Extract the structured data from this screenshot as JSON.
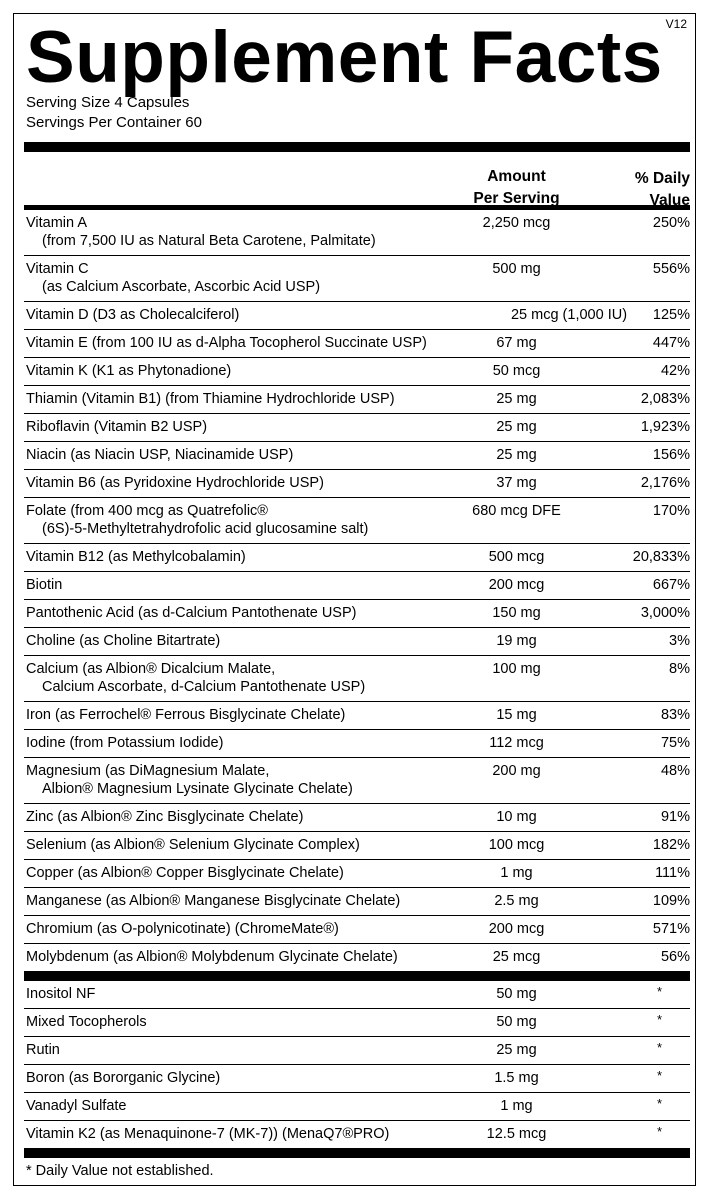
{
  "version": "V12",
  "title": "Supplement Facts",
  "serving_size": "Serving Size 4 Capsules",
  "servings_per_container": "Servings Per Container 60",
  "header": {
    "amount": [
      "Amount",
      "Per Serving"
    ],
    "dv": [
      "% Daily",
      "Value"
    ]
  },
  "nutrients": [
    {
      "name": "Vitamin A",
      "sub": "(from 7,500 IU as Natural Beta Carotene, Palmitate)",
      "amount": "2,250 mcg",
      "dv": "250%"
    },
    {
      "name": "Vitamin C",
      "sub": "(as Calcium Ascorbate, Ascorbic Acid USP)",
      "amount": "500 mg",
      "dv": "556%"
    },
    {
      "name": "Vitamin D (D3 as Cholecalciferol)",
      "amount": "25 mcg (1,000 IU)",
      "dv": "125%",
      "wide": true
    },
    {
      "name": "Vitamin E (from 100 IU as d-Alpha Tocopherol Succinate USP)",
      "amount": "67 mg",
      "dv": "447%"
    },
    {
      "name": "Vitamin K (K1 as Phytonadione)",
      "amount": "50 mcg",
      "dv": "42%"
    },
    {
      "name": "Thiamin (Vitamin B1) (from Thiamine Hydrochloride USP)",
      "amount": "25 mg",
      "dv": "2,083%"
    },
    {
      "name": "Riboflavin (Vitamin B2 USP)",
      "amount": "25 mg",
      "dv": "1,923%"
    },
    {
      "name": "Niacin (as Niacin USP, Niacinamide USP)",
      "amount": "25 mg",
      "dv": "156%"
    },
    {
      "name": "Vitamin B6 (as Pyridoxine Hydrochloride USP)",
      "amount": "37 mg",
      "dv": "2,176%"
    },
    {
      "name": "Folate (from 400 mcg as Quatrefolic®",
      "sub": "(6S)-5-Methyltetrahydrofolic acid glucosamine salt)",
      "amount": "680 mcg DFE",
      "dv": "170%"
    },
    {
      "name": "Vitamin B12 (as Methylcobalamin)",
      "amount": "500 mcg",
      "dv": "20,833%"
    },
    {
      "name": "Biotin",
      "amount": "200 mcg",
      "dv": "667%"
    },
    {
      "name": "Pantothenic Acid (as d-Calcium Pantothenate USP)",
      "amount": "150 mg",
      "dv": "3,000%"
    },
    {
      "name": "Choline (as Choline Bitartrate)",
      "amount": "19 mg",
      "dv": "3%"
    },
    {
      "name": "Calcium (as Albion® Dicalcium Malate,",
      "sub": "Calcium Ascorbate, d-Calcium Pantothenate USP)",
      "amount": "100 mg",
      "dv": "8%"
    },
    {
      "name": "Iron (as Ferrochel® Ferrous Bisglycinate Chelate)",
      "amount": "15 mg",
      "dv": "83%"
    },
    {
      "name": "Iodine (from Potassium Iodide)",
      "amount": "112 mcg",
      "dv": "75%"
    },
    {
      "name": "Magnesium (as DiMagnesium Malate,",
      "sub": "Albion® Magnesium Lysinate Glycinate Chelate)",
      "amount": "200 mg",
      "dv": "48%"
    },
    {
      "name": "Zinc (as Albion® Zinc Bisglycinate Chelate)",
      "amount": "10 mg",
      "dv": "91%"
    },
    {
      "name": "Selenium (as Albion® Selenium Glycinate Complex)",
      "amount": "100 mcg",
      "dv": "182%"
    },
    {
      "name": "Copper (as Albion® Copper Bisglycinate Chelate)",
      "amount": "1 mg",
      "dv": "111%"
    },
    {
      "name": "Manganese (as Albion® Manganese Bisglycinate Chelate)",
      "amount": "2.5 mg",
      "dv": "109%"
    },
    {
      "name": "Chromium (as O-polynicotinate) (ChromeMate®)",
      "amount": "200 mcg",
      "dv": "571%"
    },
    {
      "name": "Molybdenum (as Albion® Molybdenum Glycinate Chelate)",
      "amount": "25 mcg",
      "dv": "56%"
    }
  ],
  "others": [
    {
      "name": "Inositol NF",
      "amount": "50 mg",
      "dv": "*"
    },
    {
      "name": "Mixed Tocopherols",
      "amount": "50 mg",
      "dv": "*"
    },
    {
      "name": "Rutin",
      "amount": "25 mg",
      "dv": "*"
    },
    {
      "name": "Boron (as Bororganic Glycine)",
      "amount": "1.5 mg",
      "dv": "*"
    },
    {
      "name": "Vanadyl Sulfate",
      "amount": "1 mg",
      "dv": "*"
    },
    {
      "name": "Vitamin K2 (as Menaquinone-7 (MK-7)) (MenaQ7®PRO)",
      "amount": "12.5 mcg",
      "dv": "*"
    }
  ],
  "footnote": "* Daily Value not established."
}
